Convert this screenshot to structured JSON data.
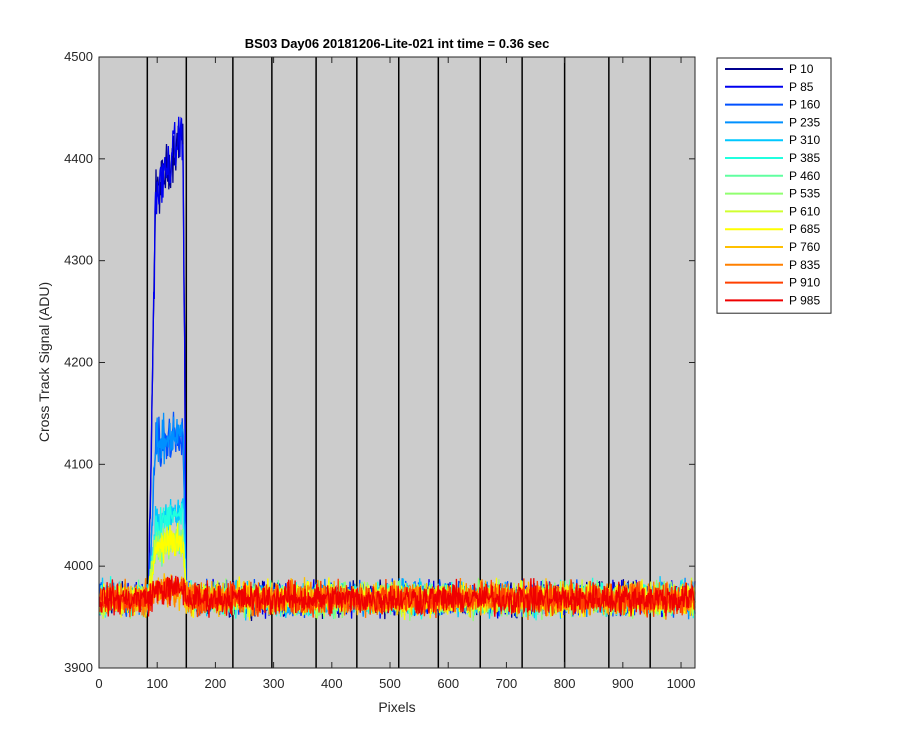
{
  "chart_data": {
    "type": "line",
    "title": "BS03 Day06 20181206-Lite-021 int time = 0.36 sec",
    "xlabel": "Pixels",
    "ylabel": "Cross Track Signal (ADU)",
    "xlim": [
      0,
      1024
    ],
    "ylim": [
      3900,
      4500
    ],
    "xticks": [
      0,
      100,
      200,
      300,
      400,
      500,
      600,
      700,
      800,
      900,
      1000
    ],
    "yticks": [
      3900,
      4000,
      4100,
      4200,
      4300,
      4400,
      4500
    ],
    "vertical_lines": [
      83,
      150,
      230,
      297,
      373,
      443,
      515,
      583,
      655,
      727,
      800,
      876,
      947
    ],
    "background": "#cccccc",
    "legend_position": "outside-right",
    "baseline": 3968,
    "noise": 11,
    "series": [
      {
        "name": "P 10",
        "color": "#00008f",
        "peak": 470
      },
      {
        "name": "P 85",
        "color": "#0000ef",
        "peak": 470
      },
      {
        "name": "P 160",
        "color": "#0050ff",
        "peak": 175
      },
      {
        "name": "P 235",
        "color": "#0090ff",
        "peak": 175
      },
      {
        "name": "P 310",
        "color": "#00c8ff",
        "peak": 88
      },
      {
        "name": "P 385",
        "color": "#20ffdf",
        "peak": 88
      },
      {
        "name": "P 460",
        "color": "#60ffa0",
        "peak": 60
      },
      {
        "name": "P 535",
        "color": "#90ff70",
        "peak": 60
      },
      {
        "name": "P 610",
        "color": "#d0ff30",
        "peak": 60
      },
      {
        "name": "P 685",
        "color": "#ffff00",
        "peak": 60
      },
      {
        "name": "P 760",
        "color": "#ffc000",
        "peak": 10
      },
      {
        "name": "P 835",
        "color": "#ff8000",
        "peak": 10
      },
      {
        "name": "P 910",
        "color": "#ff4000",
        "peak": 10
      },
      {
        "name": "P 985",
        "color": "#ef0000",
        "peak": 10
      }
    ]
  }
}
